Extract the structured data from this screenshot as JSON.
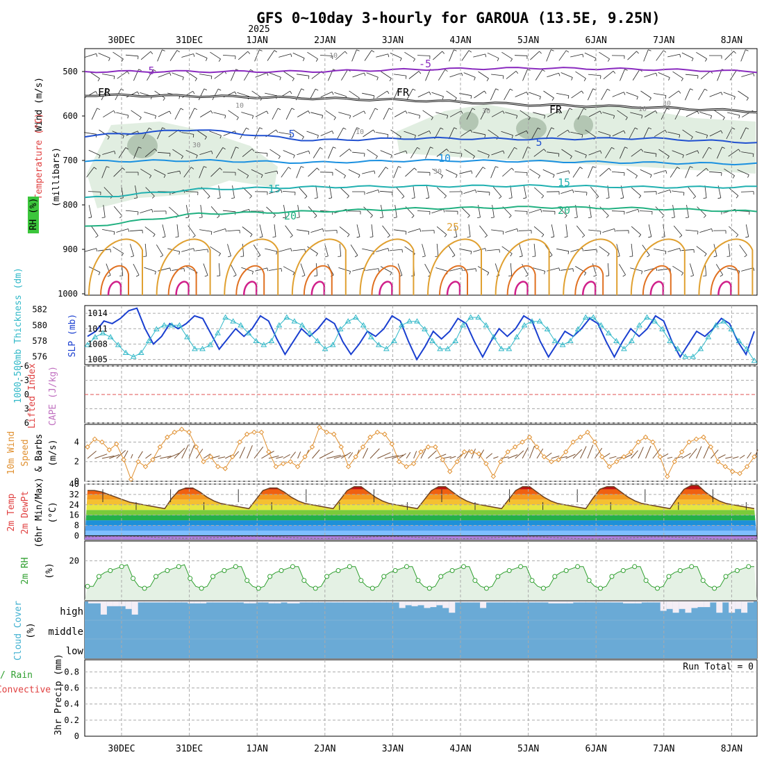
{
  "title": "GFS 0~10day 3-hourly for GAROUA (13.5E, 9.25N)",
  "colors": {
    "grid": "#aaaaaa",
    "frame": "#000000",
    "rh_fill": "#dcebdc",
    "rh_dark": "#9fb59f",
    "purple": "#8a2bbf",
    "blue": "#2050d0",
    "lightblue": "#1a90e0",
    "teal": "#20b0b0",
    "green": "#20b080",
    "orange": "#e0a030",
    "darkorange": "#e07020",
    "magenta": "#d0208a",
    "slp": "#1a3fd0",
    "thick": "#30b8c8",
    "cape_ref": "#e05050",
    "wind": "#e09030",
    "barb": "#7a5030",
    "dewpt": "#777777",
    "rh2m": "#30a030",
    "rh2m_fill": "#e4f1e4",
    "cloud": "#6aaad6",
    "cloud_high": "#f4eef6",
    "red_label": "#e04040",
    "purple_label": "#c070c0",
    "orange_label": "#e09030",
    "cyan_label": "#40b0d0",
    "green_label": "#30a030"
  },
  "dates": {
    "year_label": "2025",
    "labels": [
      "30DEC",
      "31DEC",
      "1JAN",
      "2JAN",
      "3JAN",
      "4JAN",
      "5JAN",
      "6JAN",
      "7JAN",
      "8JAN"
    ]
  },
  "panels": {
    "upper_air": {
      "ylabel_wind": "Wind (m/s)",
      "ylabel_temp": "Temperature (°C)",
      "ylabel_rh": "RH (%)",
      "ylabel_mb": "(millibars)",
      "pressure_ticks": [
        "500",
        "600",
        "700",
        "800",
        "900",
        "1000"
      ],
      "contour_labels": [
        "5",
        "-5",
        "FR",
        "FR",
        "FR",
        "5",
        "5",
        "10",
        "15",
        "15",
        "20",
        "20",
        "25",
        "10",
        "10",
        "10",
        "30",
        "30",
        "30",
        "30",
        "10"
      ]
    },
    "slp": {
      "ylabel_thick": "1000-500mb Thickness (dm)",
      "ylabel_slp": "SLP (mb)",
      "thick_ticks": [
        "582",
        "580",
        "578",
        "576"
      ],
      "slp_ticks": [
        "1014",
        "1011",
        "1008",
        "1005"
      ]
    },
    "cape": {
      "ylabel_li": "Lifted Index",
      "ylabel_cape": "CAPE (J/kg)",
      "li_ticks": [
        "-6",
        "-3",
        "0",
        "3",
        "6"
      ]
    },
    "wind10m": {
      "ylabel_1": "10m Wind",
      "ylabel_2": "Speed",
      "ylabel_3": "& Barbs",
      "ylabel_4": "(m/s)",
      "ticks": [
        "0",
        "2",
        "4"
      ]
    },
    "temp2m": {
      "ylabel_1": "2m Temp",
      "ylabel_2": "2m DewPt",
      "ylabel_3": "(6hr Min/Max)",
      "ylabel_4": "(°C)",
      "ticks": [
        "40",
        "32",
        "24",
        "16",
        "8",
        "0"
      ]
    },
    "rh2m": {
      "ylabel_1": "2m RH",
      "ylabel_2": "(%)",
      "ticks": [
        "20"
      ]
    },
    "cloud": {
      "ylabel_1": "Cloud Cover",
      "ylabel_2": "(%)",
      "levels": [
        "high",
        "middle",
        "low"
      ]
    },
    "precip": {
      "ylabel_1": "Total / Rain",
      "ylabel_2": "Convective",
      "ylabel_3": "3hr Precip (mm)",
      "ticks": [
        "0.8",
        "0.6",
        "0.4",
        "0.2",
        "0"
      ],
      "run_total": "Run Total = 0"
    }
  },
  "chart_data": {
    "type": "line",
    "title": "GFS 0~10day 3-hourly for GAROUA (13.5E, 9.25N)",
    "x_start": "29DEC 12Z",
    "x_step_hours": 3,
    "x_ticks": [
      "30DEC",
      "31DEC",
      "1JAN",
      "2JAN",
      "3JAN",
      "4JAN",
      "5JAN",
      "6JAN",
      "7JAN",
      "8JAN"
    ],
    "series": [
      {
        "name": "SLP (mb)",
        "ylim": [
          1004,
          1015.5
        ],
        "values": [
          1009.5,
          1010.5,
          1012.5,
          1012,
          1013,
          1014.5,
          1015,
          1011,
          1008,
          1009.5,
          1012,
          1011,
          1012,
          1013.5,
          1013,
          1010,
          1007,
          1009,
          1011,
          1009.5,
          1011,
          1013.5,
          1012.5,
          1009,
          1006,
          1008.5,
          1011,
          1009.5,
          1011,
          1013,
          1012,
          1008.5,
          1006,
          1008,
          1010.5,
          1009.5,
          1011,
          1013.5,
          1012.5,
          1008.5,
          1005,
          1007.5,
          1010.5,
          1009,
          1010.5,
          1013,
          1012,
          1008.5,
          1005.5,
          1008.5,
          1011,
          1009.5,
          1011,
          1013.5,
          1012.5,
          1008.5,
          1005.5,
          1008,
          1010.5,
          1009.5,
          1011,
          1013,
          1012,
          1008.5,
          1005.5,
          1008.5,
          1011,
          1009.5,
          1011,
          1013.5,
          1012.5,
          1008.5,
          1005.5,
          1008,
          1010.5,
          1009.5,
          1011,
          1013,
          1012,
          1008.5,
          1006,
          1010.5
        ]
      },
      {
        "name": "1000-500mb Thickness (dm)",
        "ylim": [
          575,
          582.5
        ],
        "values": [
          577.5,
          578.5,
          579,
          578.5,
          577.5,
          576.5,
          576,
          576.5,
          578,
          579.5,
          580,
          580,
          580,
          578.5,
          577,
          577,
          577.5,
          579,
          581,
          580.5,
          580,
          579,
          578,
          577.5,
          578,
          580,
          581,
          580.5,
          580,
          579,
          578,
          577,
          577.5,
          579.5,
          580.5,
          581,
          580,
          578.5,
          577.5,
          577,
          578,
          580,
          580.5,
          580.5,
          579.5,
          578,
          577,
          577,
          578,
          580,
          581,
          581,
          580,
          578.5,
          577,
          577,
          578.5,
          580,
          580.5,
          580.5,
          579.5,
          578,
          577.5,
          578,
          579.5,
          581,
          581,
          580,
          579,
          578,
          577,
          578,
          580,
          581,
          580.5,
          579.5,
          578,
          577,
          576,
          576,
          577,
          578.5,
          580,
          580.5,
          579.5,
          578,
          577,
          575.5
        ]
      },
      {
        "name": "10m Wind Speed (m/s)",
        "ylim": [
          0,
          5.8
        ],
        "values": [
          3.5,
          4.3,
          4,
          3.2,
          3.8,
          2.2,
          0.2,
          2,
          1.5,
          2.2,
          3.5,
          4.5,
          5,
          5.3,
          5,
          3.5,
          2,
          2.5,
          1.5,
          1.3,
          2.5,
          4,
          4.8,
          5,
          5,
          3,
          1.5,
          1.8,
          2,
          1.5,
          2.5,
          3.5,
          5.5,
          5,
          4.8,
          3.5,
          1.5,
          2.5,
          3.5,
          4.5,
          5,
          4.8,
          3.8,
          2,
          1.5,
          1.8,
          3,
          3.5,
          3.5,
          2.2,
          1,
          2,
          3,
          3,
          2.8,
          1.8,
          0.5,
          2,
          3,
          3.5,
          4,
          4.5,
          3.5,
          2.5,
          2,
          2.2,
          3,
          4,
          4.5,
          5,
          4,
          2.5,
          1.5,
          2,
          2.5,
          3,
          4,
          4.5,
          4,
          2.5,
          0.5,
          2,
          3,
          4,
          4.3,
          4.5,
          3.5,
          2,
          1.5,
          1,
          0.8,
          1.5,
          2.5
        ]
      },
      {
        "name": "2m Temp (°C)",
        "ylim": [
          -3,
          40
        ],
        "values": [
          35,
          35,
          34,
          32,
          30,
          28,
          26,
          25,
          24,
          23,
          22,
          21,
          29,
          35,
          37,
          37,
          34,
          30,
          27,
          25,
          24,
          23,
          22,
          21,
          28,
          35,
          37,
          37,
          34,
          30,
          27,
          25,
          24,
          23,
          22,
          21,
          28,
          35,
          38,
          38,
          34,
          30,
          27,
          25,
          24,
          23,
          22,
          21,
          28,
          35,
          38,
          38,
          34,
          30,
          27,
          25,
          24,
          23,
          22,
          21,
          28,
          35,
          38,
          38,
          34,
          30,
          27,
          25,
          24,
          23,
          22,
          21,
          29,
          36,
          38,
          38,
          34,
          30,
          27,
          25,
          24,
          23,
          22,
          21,
          29,
          36,
          39,
          39,
          34,
          30,
          27,
          25,
          24,
          23,
          22,
          21
        ]
      },
      {
        "name": "2m RH (%)",
        "ylim": [
          0,
          30
        ],
        "values": [
          7,
          7,
          12,
          14,
          15,
          16,
          17,
          18,
          11,
          7,
          6,
          7,
          12,
          14,
          15,
          16,
          17,
          18,
          11,
          7,
          6,
          7,
          12,
          14,
          15,
          16,
          17,
          17,
          10,
          7,
          6,
          7,
          12,
          14,
          15,
          16,
          17,
          17,
          10,
          7,
          6,
          7,
          12,
          14,
          15,
          16,
          17,
          17,
          10,
          7,
          6,
          7,
          12,
          14,
          15,
          16,
          17,
          17,
          10,
          7,
          6,
          7,
          12,
          14,
          15,
          16,
          17,
          17,
          10,
          7,
          6,
          7,
          12,
          14,
          15,
          16,
          17,
          17,
          10,
          7,
          6,
          7,
          12,
          14,
          15,
          16,
          17,
          17,
          10,
          7,
          6,
          7,
          12,
          14,
          15,
          16,
          17,
          17,
          10,
          7,
          6,
          7,
          12,
          14,
          15,
          16,
          17,
          17,
          10,
          7,
          6,
          7,
          12,
          14,
          15,
          16,
          17,
          17
        ]
      },
      {
        "name": "High Cloud Cover (%)",
        "ylim": [
          0,
          100
        ],
        "values": [
          90,
          90,
          30,
          75,
          75,
          75,
          60,
          30,
          95,
          95,
          95,
          95,
          95,
          95,
          95,
          95,
          90,
          90,
          90,
          95,
          95,
          95,
          95,
          95,
          95,
          90,
          90,
          95,
          95,
          90,
          90,
          95,
          90,
          90,
          95,
          95,
          95,
          95,
          95,
          95,
          95,
          95,
          95,
          95,
          95,
          95,
          95,
          95,
          95,
          95,
          65,
          80,
          75,
          80,
          65,
          70,
          80,
          65,
          40,
          95,
          95,
          95,
          95,
          65,
          95,
          95,
          95,
          95,
          95,
          95,
          95,
          95,
          95,
          95,
          90,
          90,
          90,
          90,
          95,
          95,
          95,
          95,
          95,
          95,
          95,
          95,
          90,
          90,
          90,
          95,
          95,
          95,
          50,
          60,
          40,
          60,
          40,
          65,
          70,
          70,
          95,
          40,
          95,
          40,
          60,
          40,
          95
        ]
      },
      {
        "name": "3hr Precip (mm)",
        "ylim": [
          0,
          1
        ],
        "values": [
          0,
          0,
          0,
          0,
          0,
          0,
          0,
          0,
          0,
          0,
          0,
          0,
          0,
          0,
          0,
          0,
          0,
          0,
          0,
          0,
          0,
          0,
          0,
          0,
          0,
          0,
          0,
          0,
          0,
          0,
          0,
          0,
          0,
          0,
          0,
          0,
          0,
          0,
          0,
          0,
          0,
          0,
          0,
          0,
          0,
          0,
          0,
          0,
          0,
          0,
          0,
          0,
          0,
          0,
          0,
          0,
          0,
          0,
          0,
          0,
          0,
          0,
          0,
          0,
          0,
          0,
          0,
          0,
          0,
          0,
          0,
          0,
          0,
          0,
          0,
          0,
          0,
          0,
          0,
          0,
          0,
          0,
          0
        ]
      }
    ],
    "contours": [
      {
        "label": "-5 °C",
        "p_mb": [
          500,
          500,
          500,
          495,
          492,
          495,
          500
        ]
      },
      {
        "label": "FR (0 °C)",
        "p_mb": [
          553,
          555,
          560,
          565,
          575,
          580,
          590
        ]
      },
      {
        "label": "5 °C",
        "p_mb": [
          645,
          630,
          655,
          650,
          652,
          650,
          660
        ]
      },
      {
        "label": "10 °C",
        "p_mb": [
          702,
          700,
          705,
          700,
          702,
          705,
          708
        ]
      },
      {
        "label": "15 °C",
        "p_mb": [
          785,
          765,
          760,
          758,
          757,
          760,
          760
        ]
      },
      {
        "label": "20 °C",
        "p_mb": [
          850,
          820,
          815,
          808,
          805,
          808,
          815
        ]
      }
    ]
  }
}
